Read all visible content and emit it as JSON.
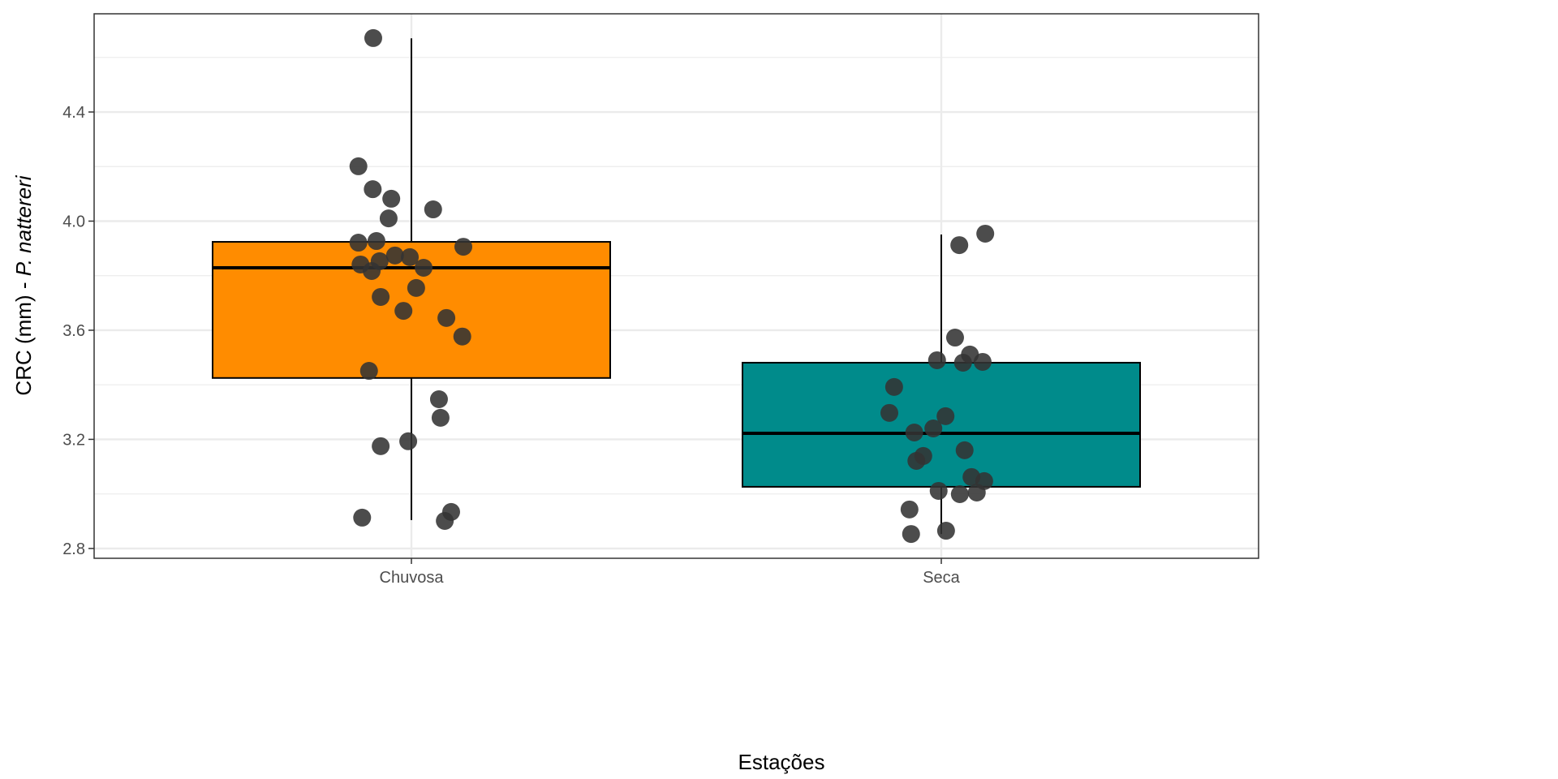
{
  "chart_data": {
    "type": "boxplot",
    "title": "",
    "xlabel": "Estações",
    "ylabel_prefix": "CRC (mm) - ",
    "ylabel_italic": "P. nattereri",
    "ylim": [
      2.764,
      4.76
    ],
    "yticks": [
      2.8,
      3.2,
      3.6,
      4.0,
      4.4
    ],
    "ytick_labels": [
      "2.8",
      "3.2",
      "3.6",
      "4.0",
      "4.4"
    ],
    "grid": true,
    "categories": [
      "Chuvosa",
      "Seca"
    ],
    "boxes": [
      {
        "category": "Chuvosa",
        "color": "#FF8C00",
        "whisker_low": 2.904,
        "q1": 3.425,
        "median": 3.829,
        "q3": 3.924,
        "whisker_high": 4.67
      },
      {
        "category": "Seca",
        "color": "#008B8B",
        "whisker_low": 2.853,
        "q1": 3.026,
        "median": 3.222,
        "q3": 3.481,
        "whisker_high": 3.951
      }
    ],
    "points": [
      {
        "category": "Chuvosa",
        "jitter": [
          -0.072,
          -0.1,
          -0.073,
          -0.038,
          -0.043,
          0.041,
          -0.1,
          -0.066,
          0.098,
          -0.031,
          -0.003,
          -0.06,
          -0.096,
          0.023,
          -0.075,
          0.009,
          -0.058,
          -0.015,
          0.066,
          0.096,
          -0.08,
          0.052,
          0.055,
          -0.006,
          -0.058,
          -0.093,
          0.075,
          0.063
        ],
        "values": [
          4.671,
          4.201,
          4.117,
          4.082,
          4.01,
          4.043,
          3.921,
          3.927,
          3.906,
          3.874,
          3.868,
          3.853,
          3.841,
          3.829,
          3.817,
          3.755,
          3.722,
          3.671,
          3.645,
          3.577,
          3.451,
          3.347,
          3.279,
          3.193,
          3.175,
          2.913,
          2.934,
          2.901
        ]
      },
      {
        "category": "Seca",
        "jitter": [
          0.083,
          0.034,
          0.026,
          0.054,
          -0.008,
          0.041,
          0.078,
          -0.089,
          -0.098,
          0.008,
          -0.051,
          -0.015,
          0.044,
          -0.034,
          -0.047,
          0.057,
          0.081,
          -0.005,
          0.035,
          0.067,
          -0.06,
          0.009,
          -0.057
        ],
        "values": [
          3.954,
          3.912,
          3.573,
          3.511,
          3.49,
          3.481,
          3.484,
          3.392,
          3.297,
          3.285,
          3.225,
          3.24,
          3.16,
          3.139,
          3.121,
          3.062,
          3.047,
          3.011,
          2.999,
          3.005,
          2.943,
          2.865,
          2.853
        ]
      }
    ],
    "point_color": "#333333"
  }
}
